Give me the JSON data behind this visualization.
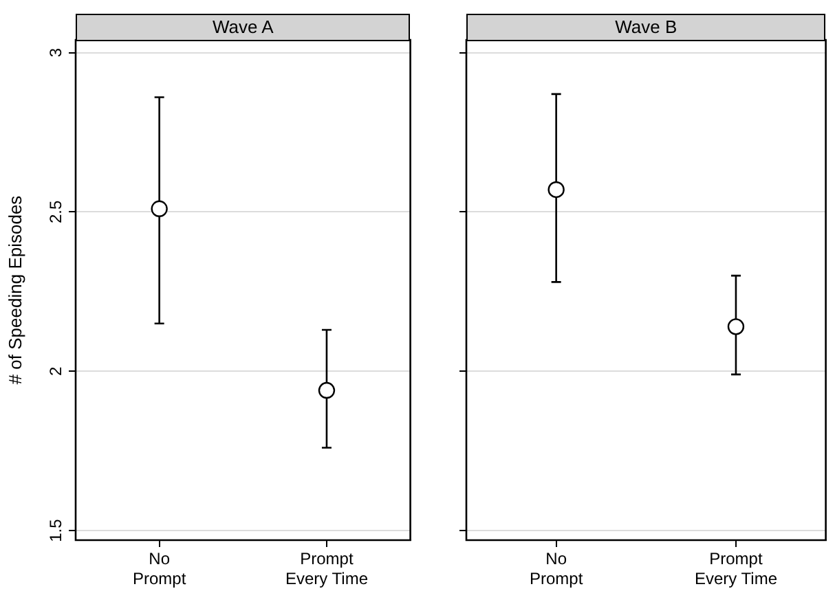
{
  "chart_data": [
    {
      "type": "scatter",
      "title": "Wave A",
      "ylabel": "# of Speeding Episodes",
      "categories": [
        "No\nPrompt",
        "Prompt\nEvery Time"
      ],
      "series": [
        {
          "color": "#000000",
          "values": [
            2.51,
            1.94
          ],
          "errors": [
            [
              2.15,
              2.86
            ],
            [
              1.76,
              2.13
            ]
          ]
        }
      ],
      "ylim": [
        1.47,
        3.04
      ],
      "yticks": [
        1.5,
        2,
        2.5,
        3
      ],
      "grid": "y",
      "marker": "circle",
      "legend": false
    },
    {
      "type": "scatter",
      "title": "Wave B",
      "categories": [
        "No\nPrompt",
        "Prompt\nEvery Time"
      ],
      "series": [
        {
          "color": "#000000",
          "values": [
            2.57,
            2.14
          ],
          "errors": [
            [
              2.28,
              2.87
            ],
            [
              1.99,
              2.3
            ]
          ]
        }
      ],
      "ylim": [
        1.47,
        3.04
      ],
      "yticks": [
        1.5,
        2,
        2.5,
        3
      ],
      "grid": "y",
      "marker": "circle",
      "legend": false,
      "tick_labels": "x"
    }
  ]
}
